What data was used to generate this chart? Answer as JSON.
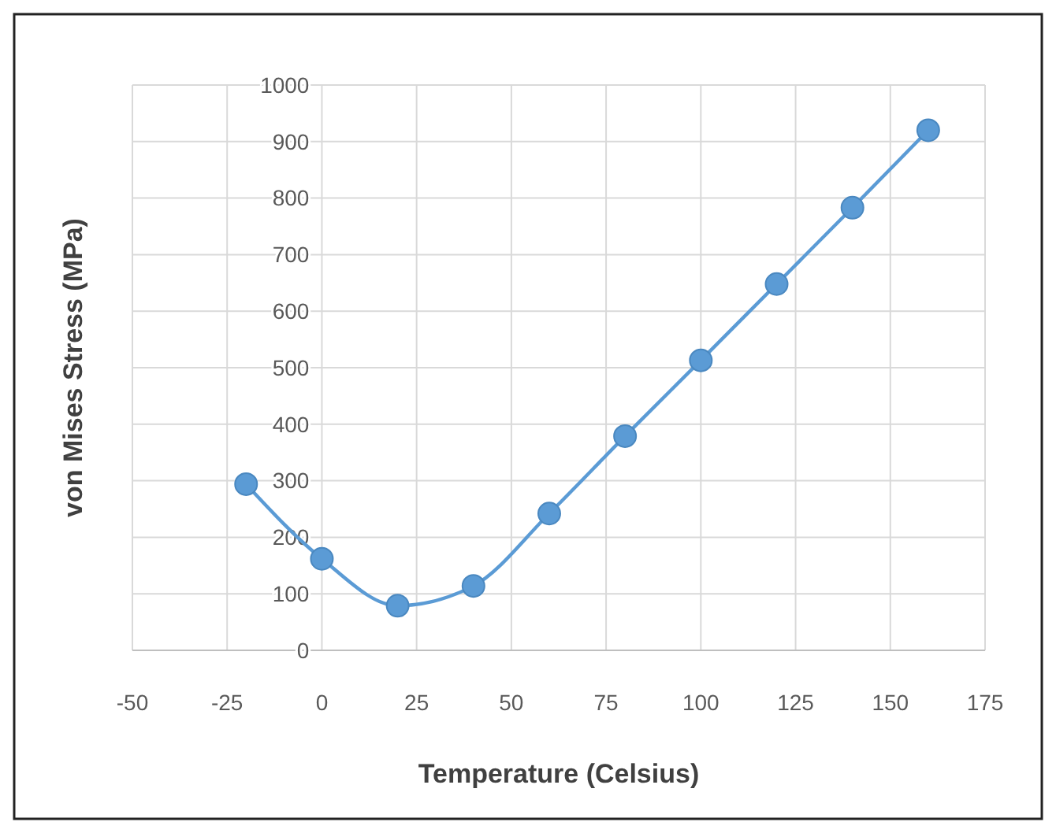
{
  "chart_data": {
    "type": "line",
    "xlabel": "Temperature (Celsius)",
    "ylabel": "von Mises Stress (MPa)",
    "x": [
      -20,
      0,
      20,
      40,
      60,
      80,
      100,
      120,
      140,
      160
    ],
    "series": [
      {
        "color": "#5b9bd5",
        "values": [
          294,
          162,
          79,
          114,
          242,
          379,
          513,
          648,
          783,
          920
        ]
      }
    ],
    "xlim": [
      -50,
      175
    ],
    "xticks": [
      -50,
      -25,
      0,
      25,
      50,
      75,
      100,
      125,
      150,
      175
    ],
    "ylim": [
      0,
      1000
    ],
    "yticks": [
      0,
      100,
      200,
      300,
      400,
      500,
      600,
      700,
      800,
      900,
      1000
    ],
    "grid": true,
    "marker": "circle",
    "line_style": "solid"
  }
}
